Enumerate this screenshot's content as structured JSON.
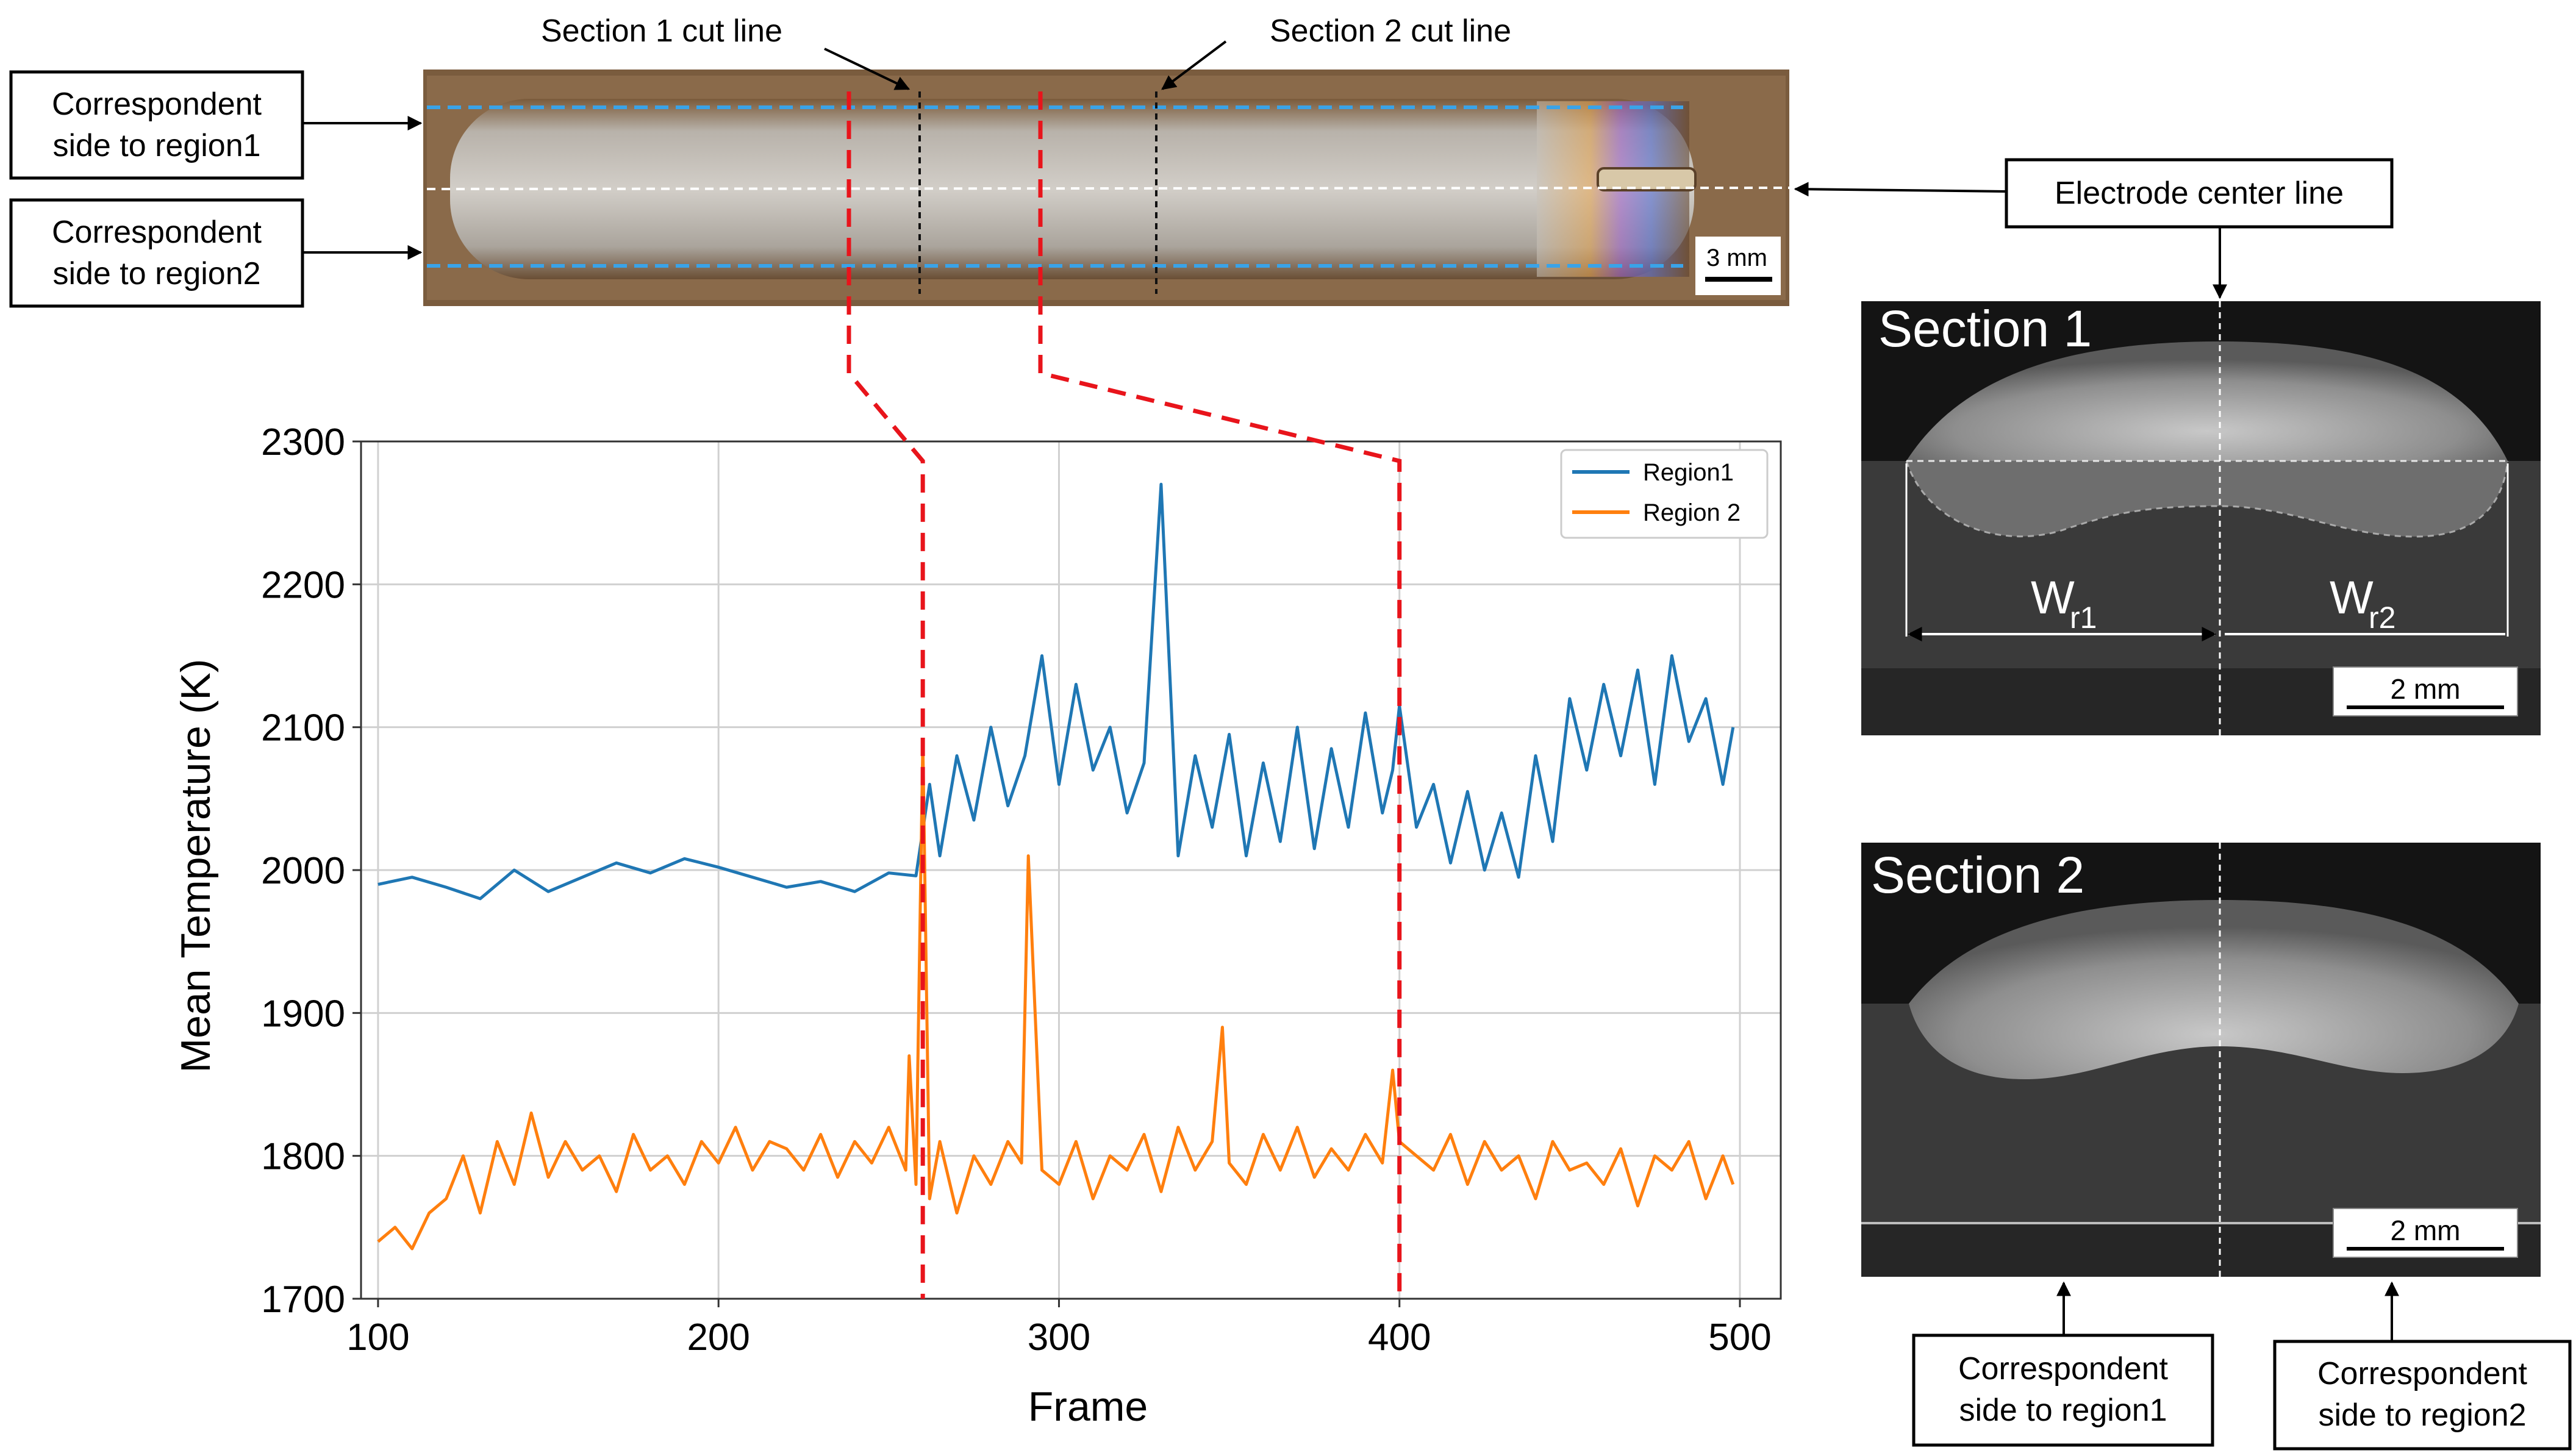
{
  "figure": {
    "top_labels": {
      "section1_cut": "Section 1 cut line",
      "section2_cut": "Section 2 cut line"
    },
    "left_boxes": [
      {
        "line1": "Correspondent",
        "line2": "side to region1"
      },
      {
        "line1": "Correspondent",
        "line2": "side to region2"
      }
    ],
    "electrode_label": "Electrode center line",
    "weld_scale": "3 mm",
    "section1": {
      "title": "Section 1",
      "w1_main": "W",
      "w1_sub": "r1",
      "w2_main": "W",
      "w2_sub": "r2",
      "scale": "2 mm"
    },
    "section2": {
      "title": "Section 2",
      "scale": "2 mm"
    },
    "bottom_boxes": [
      {
        "line1": "Correspondent",
        "line2": "side to region1"
      },
      {
        "line1": "Correspondent",
        "line2": "side to region2"
      }
    ]
  },
  "colors": {
    "region1": "#1f77b4",
    "region2": "#ff7f0e",
    "cut": "#e8141b",
    "guide": "#3aa3e8"
  },
  "chart_data": {
    "type": "line",
    "title": "",
    "xlabel": "Frame",
    "ylabel": "Mean Temperature (K)",
    "xlim": [
      95,
      512
    ],
    "ylim": [
      1700,
      2300
    ],
    "xticks": [
      100,
      200,
      300,
      400,
      500
    ],
    "yticks": [
      1700,
      1800,
      1900,
      2000,
      2100,
      2200,
      2300
    ],
    "grid": true,
    "legend_position": "top-right",
    "cut_frames": [
      260,
      400
    ],
    "series": [
      {
        "name": "Region1",
        "color": "#1f77b4",
        "x": [
          100,
          110,
          120,
          130,
          140,
          150,
          160,
          170,
          180,
          190,
          200,
          210,
          220,
          230,
          240,
          250,
          258,
          262,
          265,
          270,
          275,
          280,
          285,
          290,
          295,
          300,
          305,
          310,
          315,
          320,
          325,
          330,
          335,
          340,
          345,
          350,
          355,
          360,
          365,
          370,
          375,
          380,
          385,
          390,
          395,
          398,
          400,
          405,
          410,
          415,
          420,
          425,
          430,
          435,
          440,
          445,
          450,
          455,
          460,
          465,
          470,
          475,
          480,
          485,
          490,
          495,
          498
        ],
        "values": [
          1990,
          1995,
          1988,
          1980,
          2000,
          1985,
          1995,
          2005,
          1998,
          2008,
          2002,
          1995,
          1988,
          1992,
          1985,
          1998,
          1996,
          2060,
          2010,
          2080,
          2035,
          2100,
          2045,
          2080,
          2150,
          2060,
          2130,
          2070,
          2100,
          2040,
          2075,
          2270,
          2010,
          2080,
          2030,
          2095,
          2010,
          2075,
          2020,
          2100,
          2015,
          2085,
          2030,
          2110,
          2040,
          2070,
          2115,
          2030,
          2060,
          2005,
          2055,
          2000,
          2040,
          1995,
          2080,
          2020,
          2120,
          2070,
          2130,
          2080,
          2140,
          2060,
          2150,
          2090,
          2120,
          2060,
          2100
        ]
      },
      {
        "name": "Region 2",
        "color": "#ff7f0e",
        "x": [
          100,
          105,
          110,
          115,
          120,
          125,
          130,
          135,
          140,
          145,
          150,
          155,
          160,
          165,
          170,
          175,
          180,
          185,
          190,
          195,
          200,
          205,
          210,
          215,
          220,
          225,
          230,
          235,
          240,
          245,
          250,
          255,
          256,
          258,
          260,
          262,
          265,
          270,
          275,
          280,
          285,
          289,
          291,
          295,
          300,
          305,
          310,
          315,
          320,
          325,
          330,
          335,
          340,
          345,
          348,
          350,
          355,
          360,
          365,
          370,
          375,
          380,
          385,
          390,
          395,
          398,
          400,
          405,
          410,
          415,
          420,
          425,
          430,
          435,
          440,
          445,
          450,
          455,
          460,
          465,
          470,
          475,
          480,
          485,
          490,
          495,
          498
        ],
        "values": [
          1740,
          1750,
          1735,
          1760,
          1770,
          1800,
          1760,
          1810,
          1780,
          1830,
          1785,
          1810,
          1790,
          1800,
          1775,
          1815,
          1790,
          1800,
          1780,
          1810,
          1795,
          1820,
          1790,
          1810,
          1805,
          1790,
          1815,
          1785,
          1810,
          1795,
          1820,
          1790,
          1870,
          1780,
          2090,
          1770,
          1810,
          1760,
          1800,
          1780,
          1810,
          1795,
          2010,
          1790,
          1780,
          1810,
          1770,
          1800,
          1790,
          1815,
          1775,
          1820,
          1790,
          1810,
          1890,
          1795,
          1780,
          1815,
          1790,
          1820,
          1785,
          1805,
          1790,
          1815,
          1795,
          1860,
          1810,
          1800,
          1790,
          1815,
          1780,
          1810,
          1790,
          1800,
          1770,
          1810,
          1790,
          1795,
          1780,
          1805,
          1765,
          1800,
          1790,
          1810,
          1770,
          1800,
          1780
        ]
      }
    ]
  }
}
